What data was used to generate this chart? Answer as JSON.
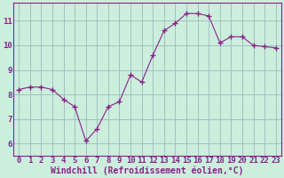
{
  "x": [
    0,
    1,
    2,
    3,
    4,
    5,
    6,
    7,
    8,
    9,
    10,
    11,
    12,
    13,
    14,
    15,
    16,
    17,
    18,
    19,
    20,
    21,
    22,
    23
  ],
  "y": [
    8.2,
    8.3,
    8.3,
    8.2,
    7.8,
    7.5,
    6.1,
    6.6,
    7.5,
    7.7,
    8.8,
    8.5,
    9.6,
    10.6,
    10.9,
    11.3,
    11.3,
    11.2,
    10.1,
    10.35,
    10.35,
    10.0,
    9.95,
    9.9
  ],
  "line_color": "#882288",
  "marker": "+",
  "marker_size": 4,
  "bg_color": "#cceedd",
  "grid_color": "#99bbbb",
  "xlabel": "Windchill (Refroidissement éolien,°C)",
  "ylim": [
    5.5,
    11.75
  ],
  "xlim": [
    -0.5,
    23.5
  ],
  "yticks": [
    6,
    7,
    8,
    9,
    10,
    11
  ],
  "xticks": [
    0,
    1,
    2,
    3,
    4,
    5,
    6,
    7,
    8,
    9,
    10,
    11,
    12,
    13,
    14,
    15,
    16,
    17,
    18,
    19,
    20,
    21,
    22,
    23
  ],
  "tick_fontsize": 6.5,
  "xlabel_fontsize": 7
}
